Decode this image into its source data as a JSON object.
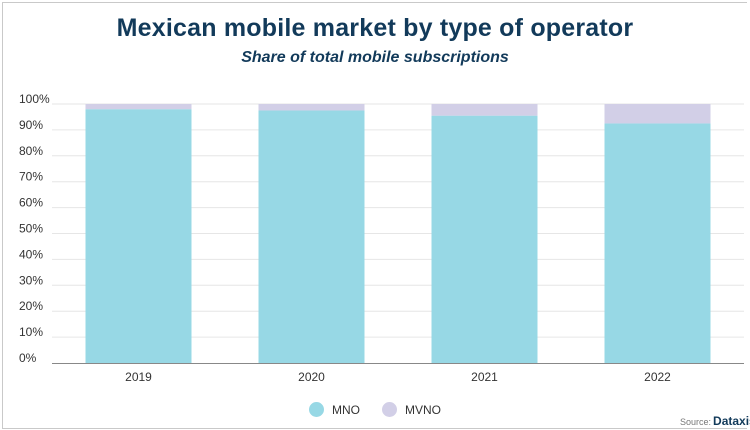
{
  "chart_data": {
    "type": "bar",
    "stacked": true,
    "title": "Mexican mobile market by type of operator",
    "subtitle": "Share of total mobile subscriptions",
    "categories": [
      "2019",
      "2020",
      "2021",
      "2022"
    ],
    "series": [
      {
        "name": "MNO",
        "color": "#97d8e5",
        "values": [
          98,
          97.5,
          95.5,
          92.5
        ]
      },
      {
        "name": "MVNO",
        "color": "#d2cfe7",
        "values": [
          2,
          2.5,
          4.5,
          7.5
        ]
      }
    ],
    "ylim": [
      0,
      100
    ],
    "yticks": [
      "0%",
      "10%",
      "20%",
      "30%",
      "40%",
      "50%",
      "60%",
      "70%",
      "80%",
      "90%",
      "100%"
    ],
    "grid": true,
    "legend_position": "bottom",
    "source_label": "Source:",
    "source_brand": "Dataxis"
  }
}
